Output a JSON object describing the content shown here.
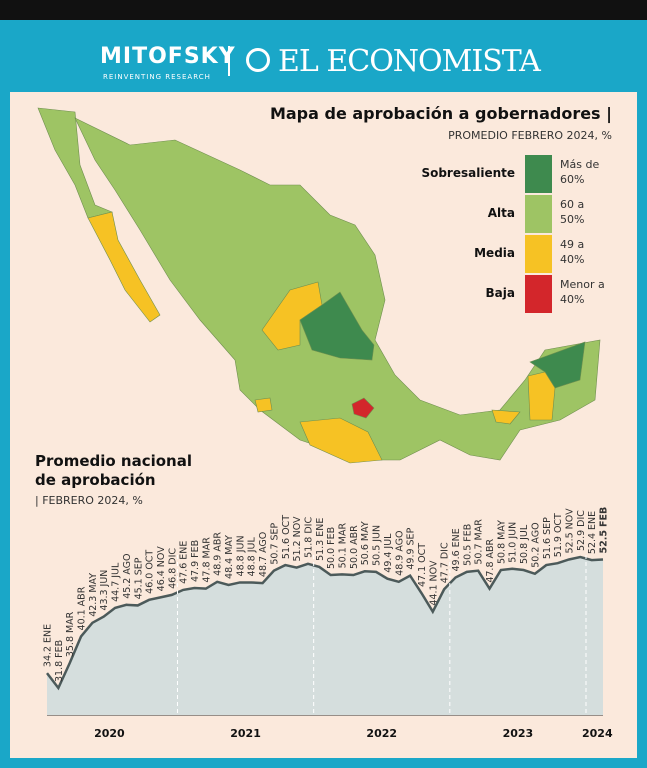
{
  "header": {
    "brand": "MITOFSKY",
    "tagline": "REINVENTING RESEARCH",
    "partner": "EL ECONOMISTA"
  },
  "map": {
    "title": "Mapa de aprobación a gobernadores",
    "subtitle": "PROMEDIO FEBRERO 2024, %",
    "legend": [
      {
        "name": "Sobresaliente",
        "range": "Más de 60%",
        "color": "#3e8a4e"
      },
      {
        "name": "Alta",
        "range": "60 a 50%",
        "color": "#9ec464"
      },
      {
        "name": "Media",
        "range": "49 a 40%",
        "color": "#f6c224"
      },
      {
        "name": "Baja",
        "range": "Menor a 40%",
        "color": "#d3262b"
      }
    ]
  },
  "chart_data": {
    "type": "area",
    "title": "Promedio nacional de aprobación",
    "subtitle": "FEBRERO 2024, %",
    "categories": [
      "ENE",
      "FEB",
      "MAR",
      "ABR",
      "MAY",
      "JUN",
      "JUL",
      "AGO",
      "SEP",
      "OCT",
      "NOV",
      "DIC",
      "ENE",
      "FEB",
      "MAR",
      "ABR",
      "MAY",
      "JUN",
      "JUL",
      "AGO",
      "SEP",
      "OCT",
      "NOV",
      "DIC",
      "ENE",
      "FEB",
      "MAR",
      "ABR",
      "MAY",
      "JUN",
      "JUL",
      "AGO",
      "SEP",
      "OCT",
      "NOV",
      "DIC",
      "ENE",
      "FEB",
      "MAR",
      "ABR",
      "MAY",
      "JUN",
      "JUL",
      "AGO",
      "SEP",
      "OCT",
      "NOV",
      "DIC",
      "ENE",
      "FEB"
    ],
    "values": [
      34.2,
      31.8,
      35.8,
      40.1,
      42.3,
      43.3,
      44.7,
      45.2,
      45.1,
      46.0,
      46.4,
      46.8,
      47.6,
      47.9,
      47.8,
      48.9,
      48.4,
      48.8,
      48.8,
      48.7,
      50.7,
      51.6,
      51.2,
      51.8,
      51.3,
      50.0,
      50.1,
      50.0,
      50.6,
      50.5,
      49.4,
      48.9,
      49.9,
      47.1,
      44.1,
      47.7,
      49.6,
      50.5,
      50.7,
      47.8,
      50.8,
      51.0,
      50.8,
      50.2,
      51.6,
      51.9,
      52.5,
      52.9,
      52.4,
      52.5
    ],
    "value_labels": [
      "34.2",
      "31.8",
      "35.8",
      "40.1",
      "42.3",
      "43.3",
      "44.7",
      "45.2",
      "45.1",
      "46.0",
      "46.4",
      "46.8",
      "47.6",
      "47.9",
      "47.8",
      "48.9",
      "48.4",
      "48.8",
      "48.8",
      "48.7",
      "50.7",
      "51.6",
      "51.2",
      "51.8",
      "51.3",
      "50.0",
      "50.1",
      "50.0",
      "50.6",
      "50.5",
      "49.4",
      "48.9",
      "49.9",
      "47.1",
      "44.1",
      "47.7",
      "49.6",
      "50.5",
      "50.7",
      "47.8",
      "50.8",
      "51.0",
      "50.8",
      "50.2",
      "51.6",
      "51.9",
      "52.5",
      "52.9",
      "52.4",
      "52.5"
    ],
    "years": [
      "2020",
      "2021",
      "2022",
      "2023",
      "2024"
    ],
    "color": "#d5dedd",
    "line_color": "#4c5a5a"
  }
}
